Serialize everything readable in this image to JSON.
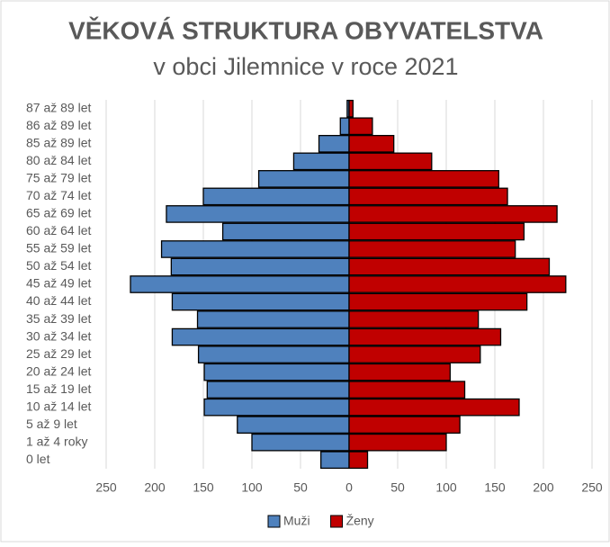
{
  "chart_data": {
    "type": "pyramid",
    "title": "VĚKOVÁ STRUKTURA OBYVATELSTVA",
    "subtitle": "v obci Jilemnice v roce 2021",
    "categories": [
      "0 let",
      "1 až 4 roky",
      "5 až 9 let",
      "10 až 14 let",
      "15 až 19 let",
      "20 až 24 let",
      "25 až 29 let",
      "30 až 34 let",
      "35 až 39 let",
      "40 až 44 let",
      "45 až 49 let",
      "50 až 54 let",
      "55 až 59 let",
      "60 až 64 let",
      "65 až 69 let",
      "70 až 74 let",
      "75 až 79 let",
      "80 až 84 let",
      "85 až 89 let",
      "86 až 89 let",
      "87 až 89 let"
    ],
    "series": [
      {
        "name": "Muži",
        "color": "#4f81bd",
        "values": [
          -29,
          -100,
          -115,
          -149,
          -146,
          -149,
          -155,
          -182,
          -156,
          -182,
          -225,
          -183,
          -193,
          -130,
          -188,
          -150,
          -93,
          -57,
          -31,
          -9,
          -2
        ]
      },
      {
        "name": "Ženy",
        "color": "#c00000",
        "values": [
          19,
          100,
          114,
          175,
          119,
          104,
          135,
          156,
          133,
          183,
          223,
          206,
          171,
          180,
          214,
          163,
          154,
          85,
          46,
          24,
          4
        ]
      }
    ],
    "xlim": [
      -250,
      250
    ],
    "xticks": [
      {
        "value": -250,
        "label": "250"
      },
      {
        "value": -200,
        "label": "200"
      },
      {
        "value": -150,
        "label": "150"
      },
      {
        "value": -100,
        "label": "100"
      },
      {
        "value": -50,
        "label": "50"
      },
      0,
      50,
      100,
      150,
      200,
      250
    ],
    "grid": true,
    "legend": "bottom"
  }
}
